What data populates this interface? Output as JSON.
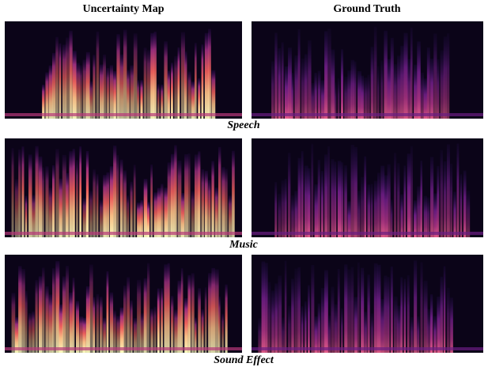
{
  "header": {
    "columns": [
      "Uncertainty Map",
      "Ground Truth"
    ]
  },
  "rows": [
    {
      "label": "Speech"
    },
    {
      "label": "Music"
    },
    {
      "label": "Sound Effect"
    }
  ]
}
